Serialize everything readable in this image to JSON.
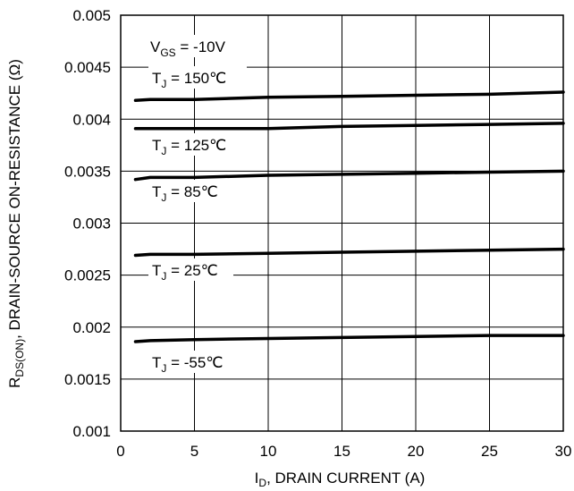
{
  "chart_data": {
    "type": "line",
    "xlabel_main": "I",
    "xlabel_sub": "D",
    "xlabel_rest": ", DRAIN CURRENT (A)",
    "ylabel_main": "R",
    "ylabel_sub": "DS(ON)",
    "ylabel_rest": ",   DRAIN-SOURCE ON-RESISTANCE (Ω)",
    "xlim": [
      0,
      30
    ],
    "ylim": [
      0.001,
      0.005
    ],
    "x_ticks": [
      "0",
      "5",
      "10",
      "15",
      "20",
      "25",
      "30"
    ],
    "y_ticks": [
      "0.001",
      "0.0015",
      "0.002",
      "0.0025",
      "0.003",
      "0.0035",
      "0.004",
      "0.0045",
      "0.005"
    ],
    "grid": true,
    "vgs_main": "V",
    "vgs_sub": "GS",
    "vgs_rest": " = -10V",
    "series": [
      {
        "name": "T_J = 150℃",
        "label_main": "T",
        "label_sub": "J",
        "label_rest": " = 150℃",
        "x": [
          1,
          2,
          5,
          10,
          15,
          20,
          25,
          30
        ],
        "y": [
          0.00418,
          0.00419,
          0.00419,
          0.00421,
          0.00422,
          0.00423,
          0.00424,
          0.00426
        ]
      },
      {
        "name": "T_J = 125℃",
        "label_main": "T",
        "label_sub": "J",
        "label_rest": " = 125℃",
        "x": [
          1,
          2,
          5,
          10,
          15,
          20,
          25,
          30
        ],
        "y": [
          0.00391,
          0.00391,
          0.00391,
          0.00391,
          0.00393,
          0.00394,
          0.00395,
          0.00396
        ]
      },
      {
        "name": "T_J = 85℃",
        "label_main": "T",
        "label_sub": "J",
        "label_rest": " = 85℃",
        "x": [
          1,
          2,
          5,
          10,
          15,
          20,
          25,
          30
        ],
        "y": [
          0.00342,
          0.00344,
          0.00344,
          0.00346,
          0.00347,
          0.00348,
          0.00349,
          0.0035
        ]
      },
      {
        "name": "T_J = 25℃",
        "label_main": "T",
        "label_sub": "J",
        "label_rest": " = 25℃",
        "x": [
          1,
          2,
          5,
          10,
          15,
          20,
          25,
          30
        ],
        "y": [
          0.00269,
          0.0027,
          0.0027,
          0.00271,
          0.00272,
          0.00273,
          0.00274,
          0.00275
        ]
      },
      {
        "name": "T_J = -55℃",
        "label_main": "T",
        "label_sub": "J",
        "label_rest": " = -55℃",
        "x": [
          1,
          2,
          5,
          10,
          15,
          20,
          25,
          30
        ],
        "y": [
          0.00186,
          0.00187,
          0.00188,
          0.00189,
          0.0019,
          0.00191,
          0.00192,
          0.00192
        ]
      }
    ]
  }
}
